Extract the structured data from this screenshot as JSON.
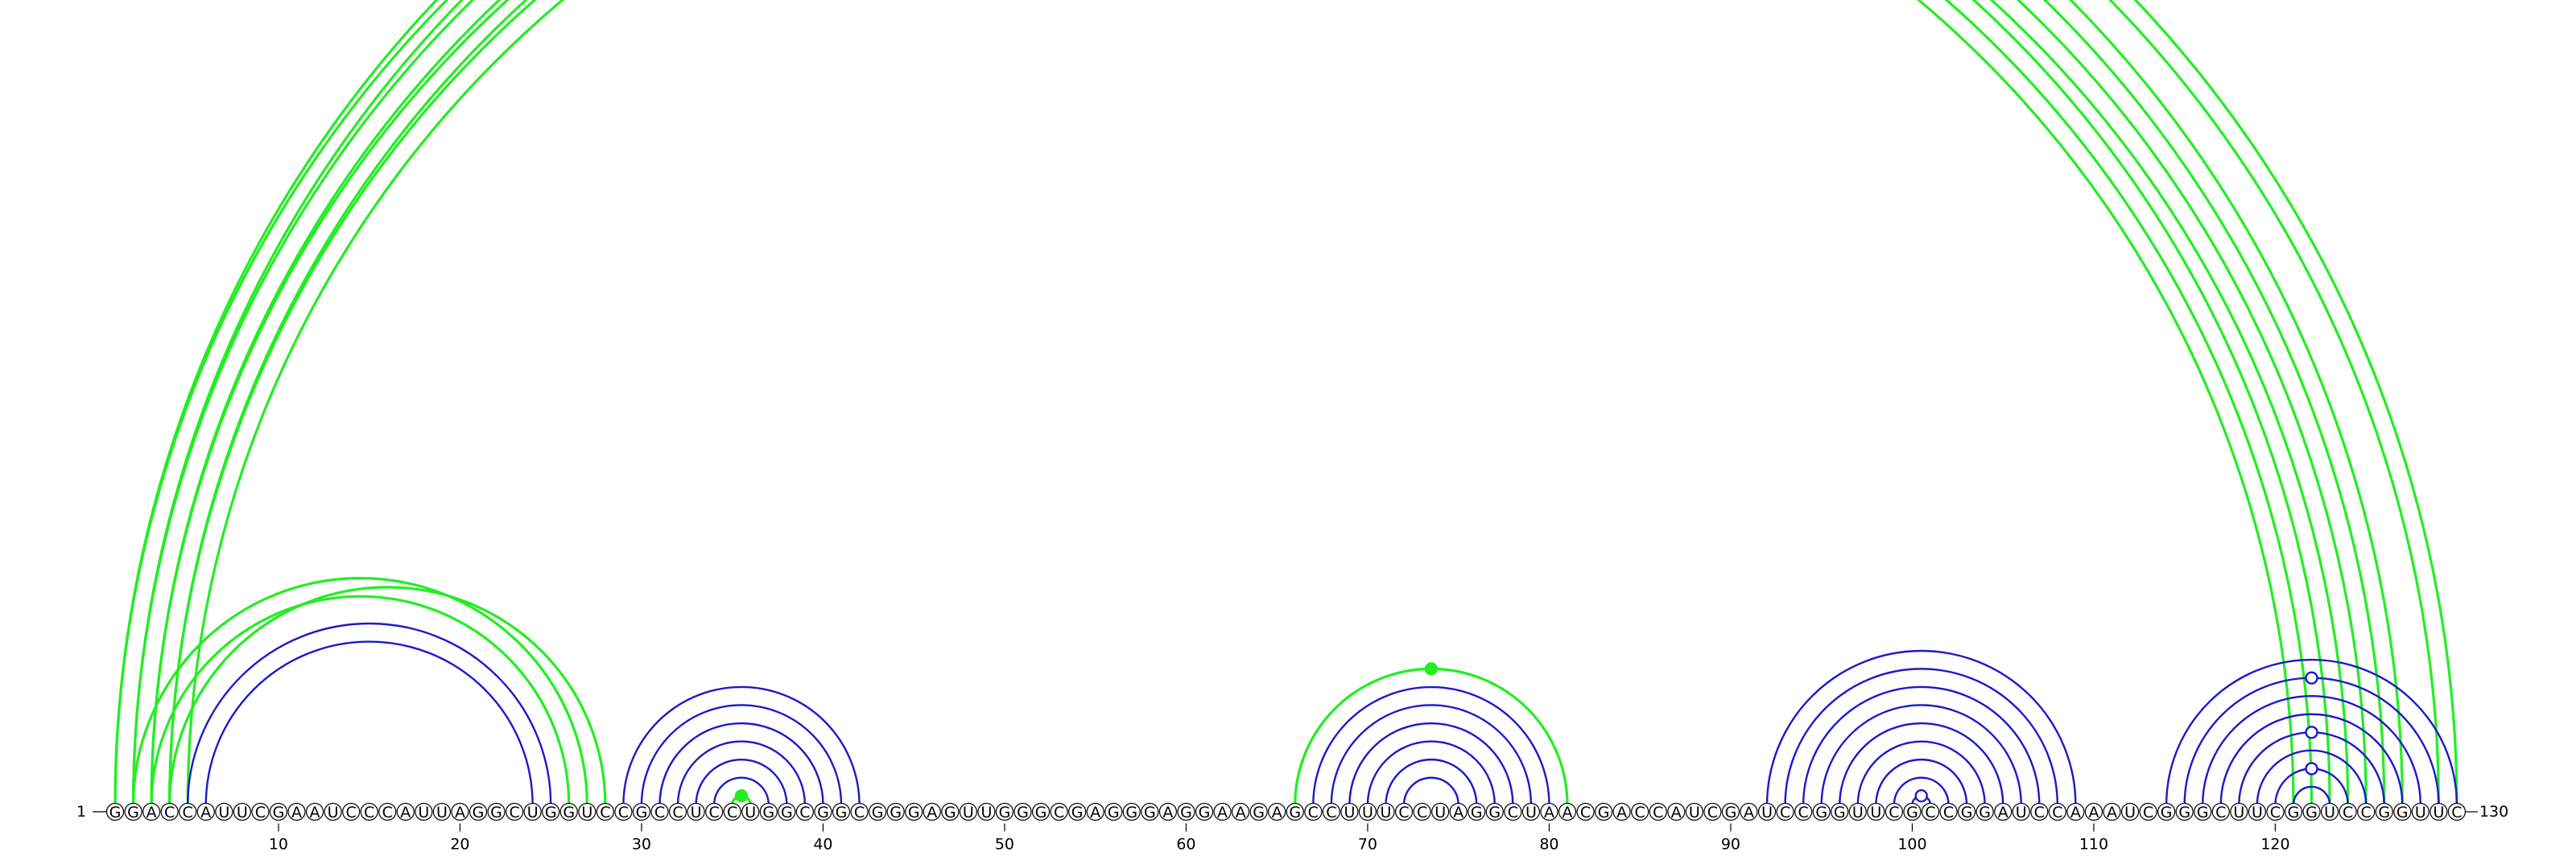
{
  "diagram": {
    "type": "rna-arc-diagram",
    "sequence": "GGACCAUUCGAAUCCCAUUAGGCUGGUCCGCCUCCUGGCGGCGGGAGUUGGGCGAGGGAGGAAGAGCCUUUCCUAGGCUAACGACCAUCGAUCCGGUUCGCCGGAUCCAAAUCGGGCUUCGGUCCGGUUC",
    "start_label": "1",
    "end_label": "130",
    "tick_labels": [
      "10",
      "20",
      "30",
      "40",
      "50",
      "60",
      "70",
      "80",
      "90",
      "100",
      "110",
      "120"
    ],
    "colors": {
      "green": "#22ee22",
      "blue": "#1a1acc",
      "text": "#000000"
    }
  },
  "arc_groups": [
    {
      "id": "long-range-outer",
      "color": "green",
      "pairs": [
        [
          1,
          130
        ],
        [
          2,
          129
        ],
        [
          3,
          123
        ],
        [
          4,
          122
        ],
        [
          5,
          121
        ]
      ],
      "marker": {
        "pair_index": 1,
        "style": "open"
      }
    },
    {
      "id": "long-range-mid",
      "color": "green",
      "pairs": [
        [
          1,
          127
        ],
        [
          2,
          126
        ],
        [
          3,
          125
        ],
        [
          4,
          124
        ]
      ]
    },
    {
      "id": "left-hairpin-green",
      "color": "green",
      "pairs": [
        [
          2,
          27
        ],
        [
          3,
          26
        ],
        [
          4,
          28
        ]
      ]
    },
    {
      "id": "left-hairpin-blue",
      "color": "blue",
      "pairs": [
        [
          5,
          25
        ],
        [
          6,
          24
        ]
      ]
    },
    {
      "id": "stem-30-41",
      "color": "blue",
      "pairs": [
        [
          29,
          42
        ],
        [
          30,
          41
        ],
        [
          31,
          40
        ],
        [
          32,
          39
        ],
        [
          33,
          38
        ],
        [
          34,
          37
        ]
      ]
    },
    {
      "id": "stem-30-41-inner",
      "color": "green",
      "pairs": [
        [
          35,
          36
        ]
      ],
      "marker": {
        "pair_index": 0,
        "style": "filled"
      }
    },
    {
      "id": "hairpin-70",
      "color": "green",
      "pairs": [
        [
          66,
          81
        ]
      ],
      "marker": {
        "pair_index": 0,
        "style": "filled"
      }
    },
    {
      "id": "hairpin-70-blue",
      "color": "blue",
      "pairs": [
        [
          67,
          80
        ],
        [
          68,
          79
        ],
        [
          69,
          78
        ],
        [
          70,
          77
        ],
        [
          71,
          76
        ],
        [
          72,
          75
        ]
      ]
    },
    {
      "id": "stem-95-105",
      "color": "blue",
      "pairs": [
        [
          92,
          109
        ],
        [
          93,
          108
        ],
        [
          94,
          107
        ],
        [
          95,
          106
        ],
        [
          96,
          105
        ],
        [
          97,
          104
        ],
        [
          98,
          103
        ],
        [
          99,
          102
        ],
        [
          100,
          101
        ]
      ],
      "marker": {
        "pair_index": 8,
        "style": "open"
      }
    },
    {
      "id": "stem-120",
      "color": "blue",
      "pairs": [
        [
          114,
          130
        ],
        [
          115,
          129
        ],
        [
          116,
          128
        ],
        [
          117,
          127
        ],
        [
          118,
          126
        ],
        [
          119,
          125
        ],
        [
          120,
          124
        ],
        [
          121,
          123
        ]
      ],
      "marker_pairs": [
        1,
        4,
        6
      ]
    }
  ]
}
